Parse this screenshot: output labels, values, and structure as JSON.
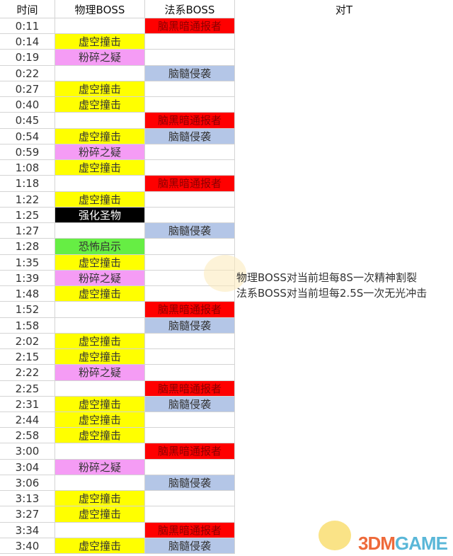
{
  "headers": {
    "time": "时间",
    "physical": "物理BOSS",
    "magic": "法系BOSS",
    "tank": "对T"
  },
  "colors": {
    "虚空撞击": "#ffff00",
    "粉碎之疑": "#f59cf5",
    "强化圣物": "#000000",
    "恐怖启示": "#66ee44",
    "脑黑暗通报者": "#ff0000",
    "脑髓侵袭": "#b4c6e7"
  },
  "rows": [
    {
      "time": "0:11",
      "physical": "",
      "magic": "脑黑暗通报者"
    },
    {
      "time": "0:14",
      "physical": "虚空撞击",
      "magic": ""
    },
    {
      "time": "0:19",
      "physical": "粉碎之疑",
      "magic": ""
    },
    {
      "time": "0:22",
      "physical": "",
      "magic": "脑髓侵袭"
    },
    {
      "time": "0:27",
      "physical": "虚空撞击",
      "magic": ""
    },
    {
      "time": "0:40",
      "physical": "虚空撞击",
      "magic": ""
    },
    {
      "time": "0:45",
      "physical": "",
      "magic": "脑黑暗通报者"
    },
    {
      "time": "0:54",
      "physical": "虚空撞击",
      "magic": "脑髓侵袭"
    },
    {
      "time": "0:59",
      "physical": "粉碎之疑",
      "magic": ""
    },
    {
      "time": "1:08",
      "physical": "虚空撞击",
      "magic": ""
    },
    {
      "time": "1:18",
      "physical": "",
      "magic": "脑黑暗通报者"
    },
    {
      "time": "1:22",
      "physical": "虚空撞击",
      "magic": ""
    },
    {
      "time": "1:25",
      "physical": "强化圣物",
      "magic": ""
    },
    {
      "time": "1:27",
      "physical": "",
      "magic": "脑髓侵袭"
    },
    {
      "time": "1:28",
      "physical": "恐怖启示",
      "magic": ""
    },
    {
      "time": "1:35",
      "physical": "虚空撞击",
      "magic": ""
    },
    {
      "time": "1:39",
      "physical": "粉碎之疑",
      "magic": ""
    },
    {
      "time": "1:48",
      "physical": "虚空撞击",
      "magic": ""
    },
    {
      "time": "1:52",
      "physical": "",
      "magic": "脑黑暗通报者"
    },
    {
      "time": "1:58",
      "physical": "",
      "magic": "脑髓侵袭"
    },
    {
      "time": "2:02",
      "physical": "虚空撞击",
      "magic": ""
    },
    {
      "time": "2:15",
      "physical": "虚空撞击",
      "magic": ""
    },
    {
      "time": "2:22",
      "physical": "粉碎之疑",
      "magic": ""
    },
    {
      "time": "2:25",
      "physical": "",
      "magic": "脑黑暗通报者"
    },
    {
      "time": "2:31",
      "physical": "虚空撞击",
      "magic": "脑髓侵袭"
    },
    {
      "time": "2:44",
      "physical": "虚空撞击",
      "magic": ""
    },
    {
      "time": "2:58",
      "physical": "虚空撞击",
      "magic": ""
    },
    {
      "time": "3:00",
      "physical": "",
      "magic": "脑黑暗通报者"
    },
    {
      "time": "3:04",
      "physical": "粉碎之疑",
      "magic": ""
    },
    {
      "time": "3:06",
      "physical": "",
      "magic": "脑髓侵袭"
    },
    {
      "time": "3:13",
      "physical": "虚空撞击",
      "magic": ""
    },
    {
      "time": "3:27",
      "physical": "虚空撞击",
      "magic": ""
    },
    {
      "time": "3:34",
      "physical": "",
      "magic": "脑黑暗通报者"
    },
    {
      "time": "3:40",
      "physical": "虚空撞击",
      "magic": "脑髓侵袭"
    }
  ],
  "tank_notes": [
    "物理BOSS对当前坦每8S一次精神割裂",
    "法系BOSS对当前坦每2.5S一次无光冲击"
  ],
  "watermark": {
    "part1": "3DM",
    "part2": "GAME"
  }
}
